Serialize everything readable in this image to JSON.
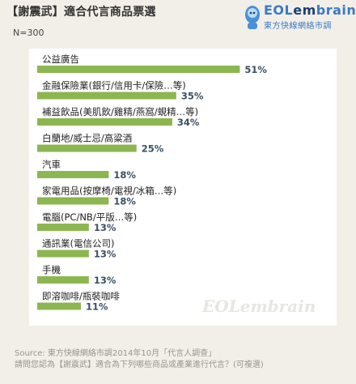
{
  "header": {
    "title": "【謝震武】適合代言商品票選",
    "sample": "N=300"
  },
  "logo": {
    "brand_prefix": "EOL",
    "brand_mid": "em",
    "brand_suffix": "brain",
    "tagline": "東方快線網絡市調",
    "icon": "robot-mascot-icon"
  },
  "colors": {
    "bar": "#8cb650",
    "value_text": "#3a4f66",
    "brand": "#3a7bc4"
  },
  "chart_data": {
    "type": "bar",
    "orientation": "horizontal",
    "categories": [
      "公益廣告",
      "金融保險業(銀行/信用卡/保險…等)",
      "補益飲品(美肌飲/雞精/燕窩/蜆精…等)",
      "白蘭地/威士忌/高粱酒",
      "汽車",
      "家電用品(按摩椅/電視/冰箱…等)",
      "電腦(PC/NB/平版…等)",
      "通訊業(電信公司)",
      "手機",
      "即溶咖啡/瓶裝咖啡"
    ],
    "values": [
      51,
      35,
      34,
      25,
      18,
      18,
      13,
      13,
      13,
      11
    ],
    "value_labels": [
      "51%",
      "35%",
      "34%",
      "25%",
      "18%",
      "18%",
      "13%",
      "13%",
      "13%",
      "11%"
    ],
    "unit": "%",
    "xlim": [
      0,
      55
    ]
  },
  "watermark": "EOLembrain",
  "footer": {
    "source": "Source: 東方快線網絡市調2014年10月「代言人調查」",
    "question": "請問您認為【謝震武】適合為下列哪些商品或產業進行代言？(可複選)"
  }
}
